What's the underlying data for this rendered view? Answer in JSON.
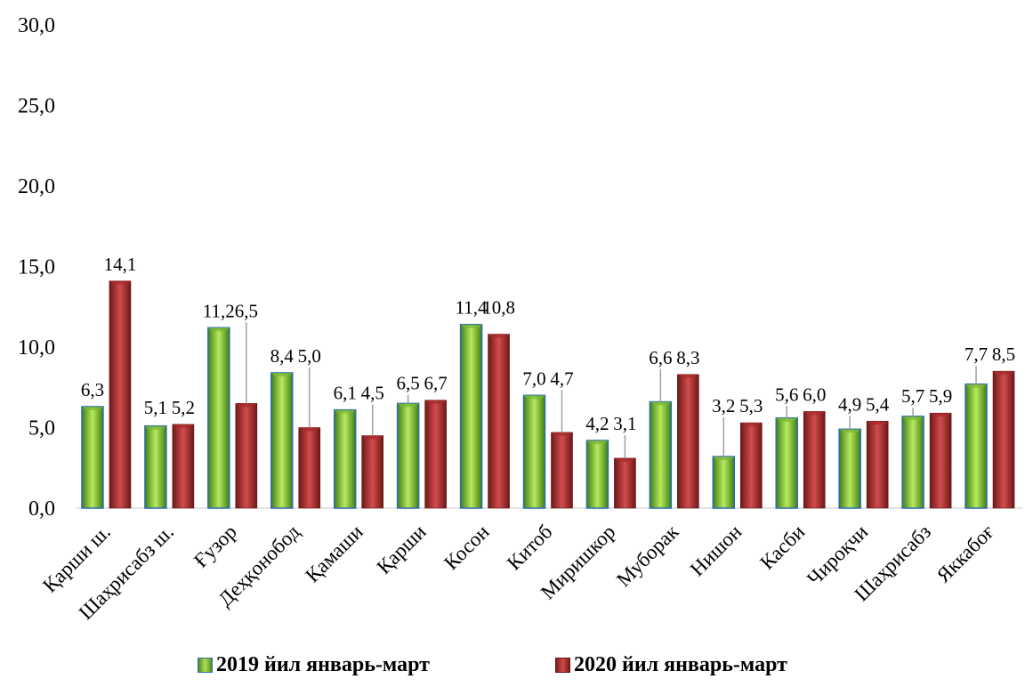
{
  "chart_data": {
    "type": "bar",
    "categories": [
      "Қарши ш.",
      "Шаҳрисабз ш.",
      "Ғузор",
      "Деҳқонобод",
      "Қамаши",
      "Қарши",
      "Косон",
      "Китоб",
      "Миришкор",
      "Муборак",
      "Нишон",
      "Касби",
      "Чироқчи",
      "Шаҳрисабз",
      "Яккабоғ"
    ],
    "series": [
      {
        "name": "2019 йил январь-март",
        "values": [
          6.3,
          5.1,
          11.2,
          8.4,
          6.1,
          6.5,
          11.4,
          7.0,
          4.2,
          6.6,
          3.2,
          5.6,
          4.9,
          5.7,
          7.7
        ],
        "labels": [
          "6,3",
          "5,1",
          "11,2",
          "8,4",
          "6,1",
          "6,5",
          "11,4",
          "7,0",
          "4,2",
          "6,6",
          "3,2",
          "5,6",
          "4,9",
          "5,7",
          "7,7"
        ],
        "color": "#8fcc3c"
      },
      {
        "name": "2020 йил январь-март",
        "values": [
          14.1,
          5.2,
          6.5,
          5.0,
          4.5,
          6.7,
          10.8,
          4.7,
          3.1,
          8.3,
          5.3,
          6.0,
          5.4,
          5.9,
          8.5
        ],
        "labels": [
          "14,1",
          "5,2",
          "6,5",
          "5,0",
          "4,5",
          "6,7",
          "10,8",
          "4,7",
          "3,1",
          "8,3",
          "5,3",
          "6,0",
          "5,4",
          "5,9",
          "8,5"
        ],
        "color": "#b83232"
      }
    ],
    "ylim": [
      0,
      30
    ],
    "yticks": [
      "0,0",
      "5,0",
      "10,0",
      "15,0",
      "20,0",
      "25,0",
      "30,0"
    ],
    "ytick_values": [
      0,
      5,
      10,
      15,
      20,
      25,
      30
    ],
    "grid": false,
    "legend_position": "bottom",
    "title": "",
    "xlabel": "",
    "ylabel": ""
  }
}
